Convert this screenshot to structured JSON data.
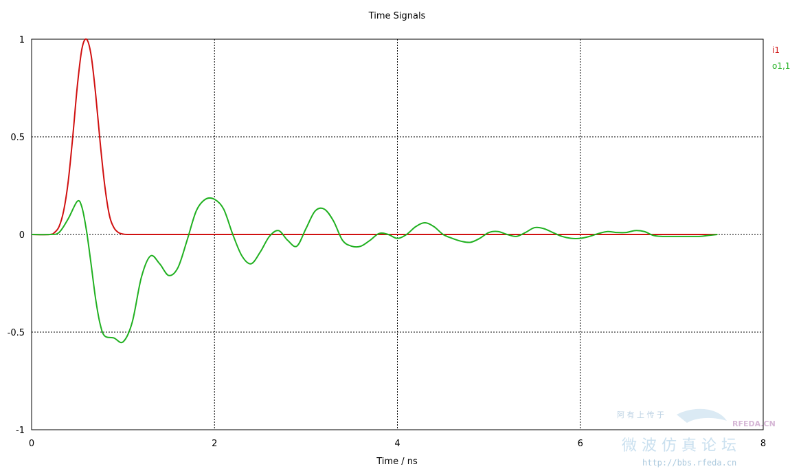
{
  "chart_data": {
    "type": "line",
    "title": "Time Signals",
    "xlabel": "Time / ns",
    "ylabel": "",
    "xlim": [
      0,
      8
    ],
    "ylim": [
      -1,
      1
    ],
    "xticks": [
      0,
      2,
      4,
      6,
      8
    ],
    "yticks": [
      -1,
      -0.5,
      0,
      0.5,
      1
    ],
    "xtick_labels": [
      "0",
      "2",
      "4",
      "6",
      "8"
    ],
    "ytick_labels": [
      "-1",
      "-0.5",
      "0",
      "0.5",
      "1"
    ],
    "grid": true,
    "legend_position": "top-right",
    "series": [
      {
        "name": "i1",
        "color": "#d01010",
        "x": [
          0,
          0.2,
          0.25,
          0.3,
          0.35,
          0.4,
          0.45,
          0.5,
          0.55,
          0.6,
          0.65,
          0.7,
          0.75,
          0.8,
          0.85,
          0.9,
          0.95,
          1.0,
          1.05,
          1.1,
          1.5,
          2,
          3,
          4,
          5,
          6,
          7,
          7.5
        ],
        "y": [
          0,
          0,
          0.01,
          0.04,
          0.12,
          0.27,
          0.5,
          0.76,
          0.95,
          1.0,
          0.92,
          0.72,
          0.47,
          0.25,
          0.1,
          0.035,
          0.01,
          0.002,
          0,
          0,
          0,
          0,
          0,
          0,
          0,
          0,
          0,
          0
        ]
      },
      {
        "name": "o1,1",
        "color": "#20b020",
        "x": [
          0,
          0.2,
          0.3,
          0.4,
          0.5,
          0.55,
          0.6,
          0.65,
          0.7,
          0.75,
          0.8,
          0.9,
          1.0,
          1.1,
          1.2,
          1.3,
          1.4,
          1.5,
          1.6,
          1.7,
          1.8,
          1.9,
          2.0,
          2.1,
          2.2,
          2.3,
          2.4,
          2.5,
          2.6,
          2.7,
          2.8,
          2.9,
          3.0,
          3.1,
          3.2,
          3.3,
          3.4,
          3.5,
          3.6,
          3.7,
          3.8,
          3.9,
          4.0,
          4.1,
          4.2,
          4.3,
          4.4,
          4.5,
          4.6,
          4.7,
          4.8,
          4.9,
          5.0,
          5.1,
          5.2,
          5.3,
          5.4,
          5.5,
          5.6,
          5.7,
          5.8,
          5.9,
          6.0,
          6.1,
          6.2,
          6.3,
          6.4,
          6.5,
          6.6,
          6.7,
          6.8,
          6.9,
          7.0,
          7.1,
          7.2,
          7.3,
          7.4,
          7.5
        ],
        "y": [
          0,
          0,
          0.01,
          0.08,
          0.17,
          0.14,
          0.02,
          -0.15,
          -0.33,
          -0.46,
          -0.52,
          -0.53,
          -0.55,
          -0.45,
          -0.22,
          -0.11,
          -0.15,
          -0.21,
          -0.17,
          -0.03,
          0.12,
          0.18,
          0.18,
          0.13,
          0.0,
          -0.11,
          -0.15,
          -0.09,
          -0.01,
          0.02,
          -0.03,
          -0.06,
          0.03,
          0.12,
          0.13,
          0.07,
          -0.03,
          -0.06,
          -0.06,
          -0.03,
          0.005,
          0.0,
          -0.02,
          0.0,
          0.04,
          0.06,
          0.04,
          0.0,
          -0.02,
          -0.035,
          -0.04,
          -0.02,
          0.01,
          0.015,
          0.0,
          -0.01,
          0.01,
          0.035,
          0.03,
          0.01,
          -0.01,
          -0.02,
          -0.02,
          -0.01,
          0.005,
          0.015,
          0.01,
          0.01,
          0.02,
          0.015,
          -0.005,
          -0.01,
          -0.01,
          -0.01,
          -0.01,
          -0.01,
          -0.005,
          0.0
        ]
      }
    ]
  },
  "legend": {
    "items": [
      {
        "label": "i1",
        "color": "#d01010"
      },
      {
        "label": "o1,1",
        "color": "#20b020"
      }
    ]
  },
  "watermark": {
    "line1": "阿 有 上 传 于",
    "brand": "RFEDA.CN",
    "title": "微 波 仿 真 论 坛",
    "url": "http://bbs.rfeda.cn"
  }
}
